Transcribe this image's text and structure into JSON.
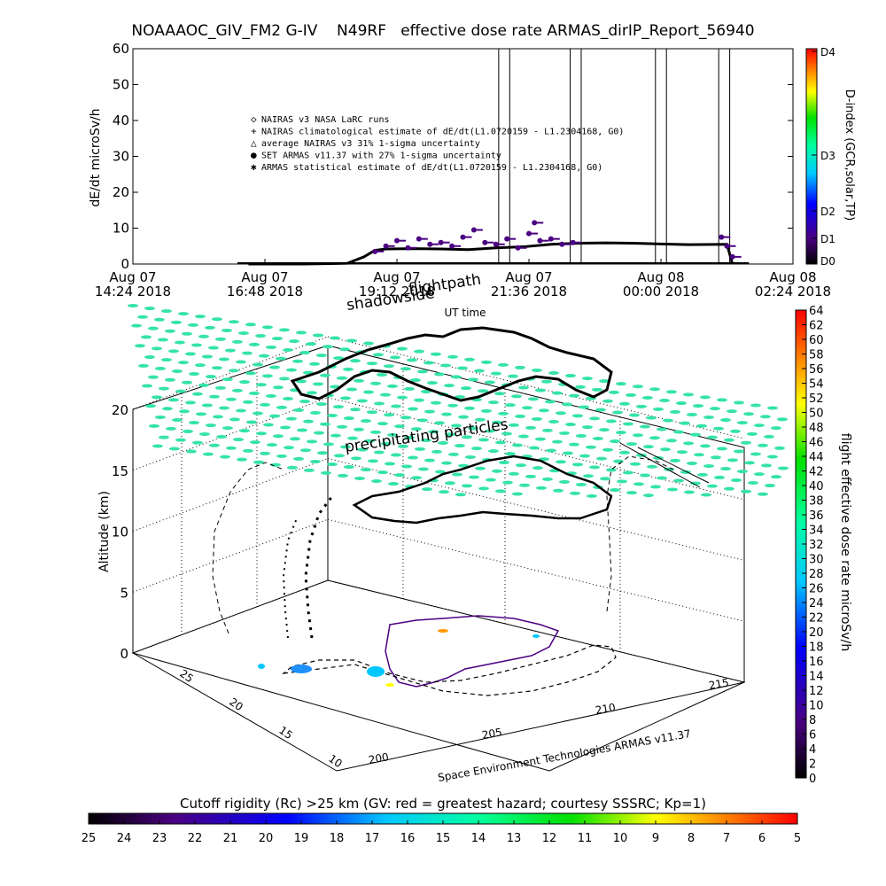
{
  "title": "NOAAAOC_GIV_FM2 G-IV    N49RF   effective dose rate ARMAS_dirIP_Report_56940",
  "top_panel": {
    "ylabel": "dE/dt microSv/h",
    "xlabel": "UT time",
    "right_label": "D-index (GCR,solar,TP)",
    "d_ticks": [
      "D0",
      "D1",
      "D2",
      "D3",
      "D4"
    ]
  },
  "overlay_labels": {
    "shadowside": "shadowside",
    "flightpath": "flightpath",
    "precipitating": "precipitating particles",
    "credit": "Space Environment Technologies ARMAS v11.37"
  },
  "bottom_panel": {
    "zlabel": "Altitude (km)",
    "z_ticks": [
      "0",
      "5",
      "10",
      "15",
      "20"
    ],
    "y_ticks": [
      "10",
      "15",
      "20",
      "25"
    ],
    "x_ticks": [
      "200",
      "205",
      "210",
      "215"
    ]
  },
  "right_colorbar": {
    "label": "flight effective dose rate microSv/h",
    "ticks": [
      "0",
      "2",
      "4",
      "6",
      "8",
      "10",
      "12",
      "14",
      "16",
      "18",
      "20",
      "22",
      "24",
      "26",
      "28",
      "30",
      "32",
      "34",
      "36",
      "38",
      "40",
      "42",
      "44",
      "46",
      "48",
      "50",
      "52",
      "54",
      "56",
      "58",
      "60",
      "62",
      "64"
    ]
  },
  "bottom_colorbar": {
    "label": "Cutoff rigidity (Rc) >25 km (GV: red = greatest hazard; courtesy SSSRC; Kp=1)",
    "ticks": [
      "25",
      "24",
      "23",
      "22",
      "21",
      "20",
      "19",
      "18",
      "17",
      "16",
      "15",
      "14",
      "13",
      "12",
      "11",
      "10",
      "9",
      "8",
      "7",
      "6",
      "5"
    ]
  },
  "chart_data": [
    {
      "type": "scatter",
      "title": "NOAAAOC_GIV_FM2 G-IV    N49RF   effective dose rate ARMAS_dirIP_Report_56940",
      "xlabel": "UT time",
      "ylabel": "dE/dt microSv/h",
      "ylim": [
        0,
        60
      ],
      "y_ticks": [
        0,
        10,
        20,
        30,
        40,
        50,
        60
      ],
      "x_tick_labels": [
        {
          "line1": "Aug 07",
          "line2": "14:24 2018"
        },
        {
          "line1": "Aug 07",
          "line2": "16:48 2018"
        },
        {
          "line1": "Aug 07",
          "line2": "19:12 2018"
        },
        {
          "line1": "Aug 07",
          "line2": "21:36 2018"
        },
        {
          "line1": "Aug 08",
          "line2": "00:00 2018"
        },
        {
          "line1": "Aug 08",
          "line2": "02:24 2018"
        }
      ],
      "xlim_hours": [
        14.4,
        26.4
      ],
      "legend": [
        "NAIRAS v3 NASA LaRC runs",
        "NAIRAS climatological estimate of dE/dt(L1.0720159 - L1.2304168, G0)",
        "average NAIRAS v3 31% 1-sigma uncertainty",
        "SET ARMAS v11.37 with 27% 1-sigma uncertainty",
        "ARMAS statistical estimate of dE/dt(L1.0720159 - L1.2304168, G0)"
      ],
      "legend_position": "center",
      "series": [
        {
          "name": "NAIRAS climatological estimate of dE/dt(L1.0720159 - L1.2304168, G0)",
          "x": [
            16.5,
            17.5,
            18.3,
            18.6,
            18.8,
            19.0,
            19.5,
            20.0,
            20.5,
            21.0,
            21.5,
            22.0,
            22.5,
            23.0,
            23.5,
            24.0,
            24.5,
            25.2,
            25.3
          ],
          "y": [
            0,
            0,
            0.2,
            2.0,
            3.8,
            4.2,
            4.3,
            4.2,
            4.0,
            4.5,
            4.8,
            5.5,
            5.8,
            5.9,
            5.8,
            5.6,
            5.4,
            5.5,
            0
          ]
        },
        {
          "name": "SET ARMAS v11.37 with 27% 1-sigma uncertainty",
          "x": [
            18.8,
            19.0,
            19.2,
            19.4,
            19.6,
            19.8,
            20.0,
            20.2,
            20.4,
            20.6,
            20.8,
            21.0,
            21.2,
            21.4,
            21.6,
            21.7,
            21.8,
            22.0,
            22.2,
            22.4,
            25.1,
            25.2,
            25.3
          ],
          "y": [
            3.5,
            5.0,
            6.5,
            4.5,
            7.0,
            5.5,
            6.0,
            5.0,
            7.5,
            9.5,
            6.0,
            5.5,
            7.0,
            4.5,
            8.5,
            11.5,
            6.5,
            7.0,
            5.5,
            6.0,
            7.5,
            5.0,
            2.0
          ]
        }
      ],
      "vertical_lines_hours": [
        21.05,
        21.25,
        22.35,
        22.55,
        23.9,
        24.1,
        25.05,
        25.25
      ]
    }
  ]
}
